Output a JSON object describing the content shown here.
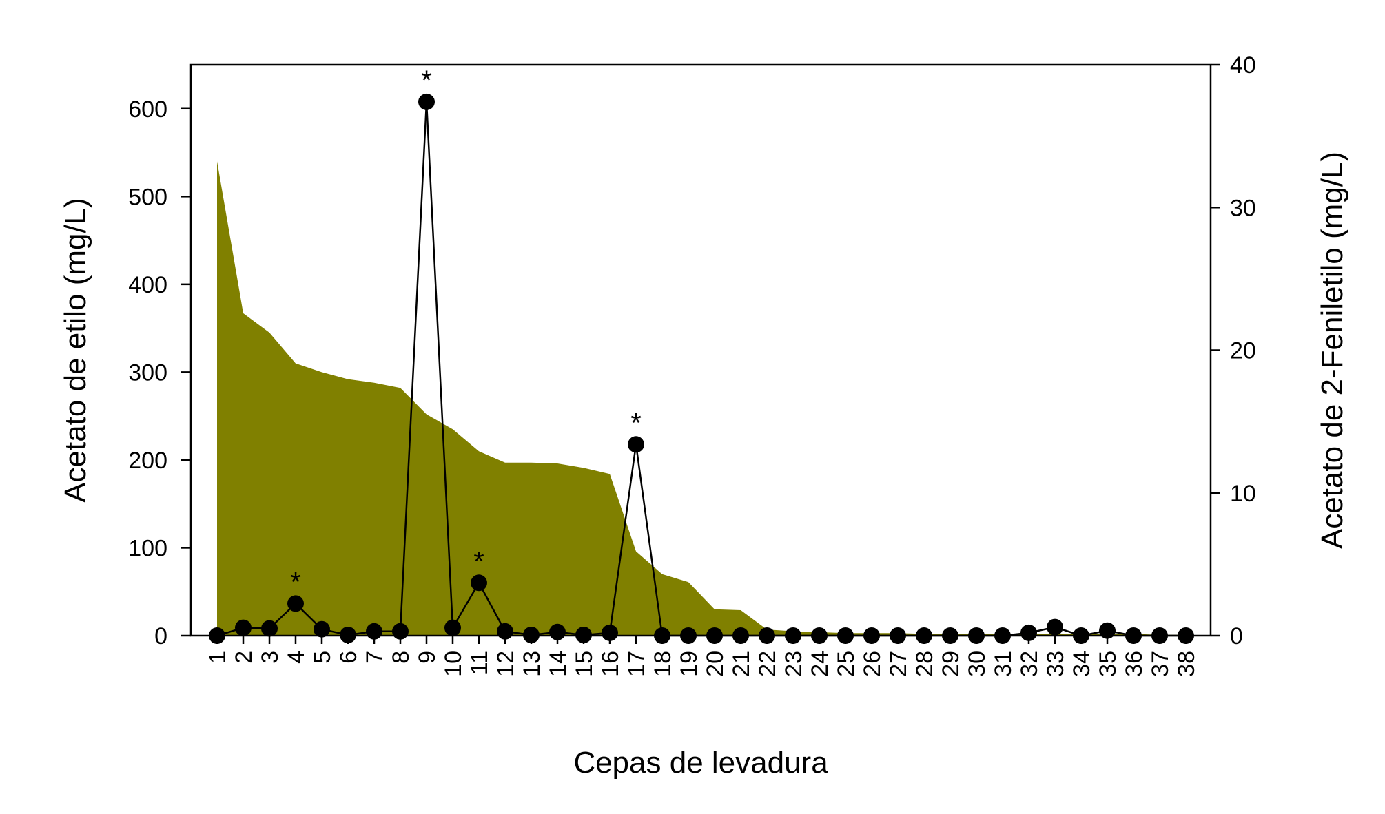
{
  "chart_data": {
    "type": "area",
    "xlabel": "Cepas de levadura",
    "ylabel_left": "Acetato de etilo (mg/L)",
    "ylabel_right": "Acetato de 2-Feniletilo (mg/L)",
    "ylim_left": [
      0,
      650
    ],
    "yticks_left": [
      "0",
      "100",
      "200",
      "300",
      "400",
      "500",
      "600"
    ],
    "ylim_right": [
      0,
      40
    ],
    "yticks_right": [
      "0",
      "10",
      "20",
      "30",
      "40"
    ],
    "categories": [
      "1",
      "2",
      "3",
      "4",
      "5",
      "6",
      "7",
      "8",
      "9",
      "10",
      "11",
      "12",
      "13",
      "14",
      "15",
      "16",
      "17",
      "18",
      "19",
      "20",
      "21",
      "22",
      "23",
      "24",
      "25",
      "26",
      "27",
      "28",
      "29",
      "30",
      "31",
      "32",
      "33",
      "34",
      "35",
      "36",
      "37",
      "38"
    ],
    "series": [
      {
        "kind": "area",
        "axis": "left",
        "color": "#808000",
        "values": [
          540,
          367,
          345,
          310,
          300,
          292,
          288,
          282,
          252,
          235,
          210,
          197,
          197,
          196,
          191,
          184,
          96,
          70,
          61,
          30,
          29,
          7,
          5,
          4,
          3,
          3,
          3,
          2,
          2,
          2,
          2,
          2,
          2,
          2,
          2,
          2,
          1,
          1
        ]
      },
      {
        "kind": "line-markers",
        "axis": "right",
        "color": "#000000",
        "values": [
          0,
          0.55,
          0.5,
          2.25,
          0.45,
          0.05,
          0.3,
          0.3,
          37.4,
          0.55,
          3.7,
          0.3,
          0.05,
          0.25,
          0.05,
          0.2,
          13.4,
          0,
          0,
          0,
          0,
          0,
          0,
          0,
          0,
          0,
          0,
          0,
          0,
          0,
          0,
          0.2,
          0.6,
          0,
          0.35,
          0,
          0,
          0
        ]
      }
    ],
    "annotations": [
      {
        "text": "*",
        "category": "4"
      },
      {
        "text": "*",
        "category": "9"
      },
      {
        "text": "*",
        "category": "11"
      },
      {
        "text": "*",
        "category": "17"
      }
    ]
  }
}
